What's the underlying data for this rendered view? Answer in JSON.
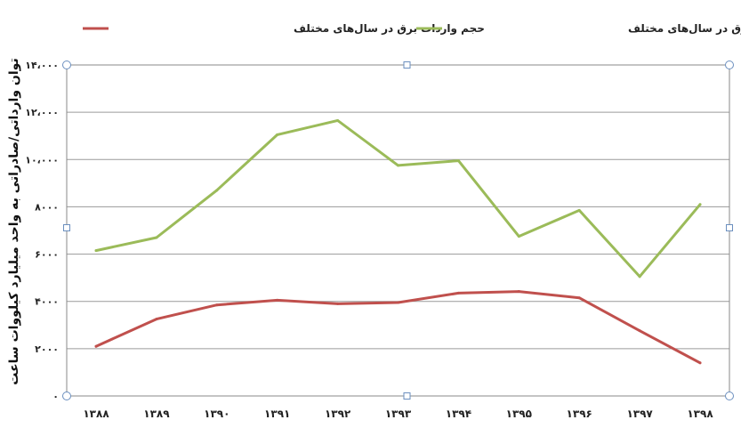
{
  "chart_data": {
    "type": "line",
    "title": "",
    "xlabel": "",
    "ylabel": "توان وارداتی/صادراتی به واحد میلیارد کیلووات ساعت",
    "ylim": [
      0,
      14000
    ],
    "yticks": [
      "۰",
      "۲۰۰۰",
      "۴۰۰۰",
      "۶۰۰۰",
      "۸۰۰۰",
      "۱۰،۰۰۰",
      "۱۲،۰۰۰",
      "۱۴،۰۰۰"
    ],
    "ytick_values": [
      0,
      2000,
      4000,
      6000,
      8000,
      10000,
      12000,
      14000
    ],
    "categories": [
      "۱۳۸۸",
      "۱۳۸۹",
      "۱۳۹۰",
      "۱۳۹۱",
      "۱۳۹۲",
      "۱۳۹۳",
      "۱۳۹۴",
      "۱۳۹۵",
      "۱۳۹۶",
      "۱۳۹۷",
      "۱۳۹۸"
    ],
    "grid": true,
    "legend_position": "top",
    "series": [
      {
        "name": "حجم واردات برق در سال‌های مختلف",
        "color": "#c0504d",
        "values": [
          2100,
          3250,
          3850,
          4050,
          3900,
          3950,
          4350,
          4420,
          4150,
          2760,
          1400
        ]
      },
      {
        "name": "حجم صادرات برق در سال‌های مختلف",
        "color": "#9bbb59",
        "values": [
          6150,
          6700,
          8700,
          11050,
          11650,
          9750,
          9950,
          6750,
          7850,
          5050,
          8100
        ]
      }
    ]
  }
}
